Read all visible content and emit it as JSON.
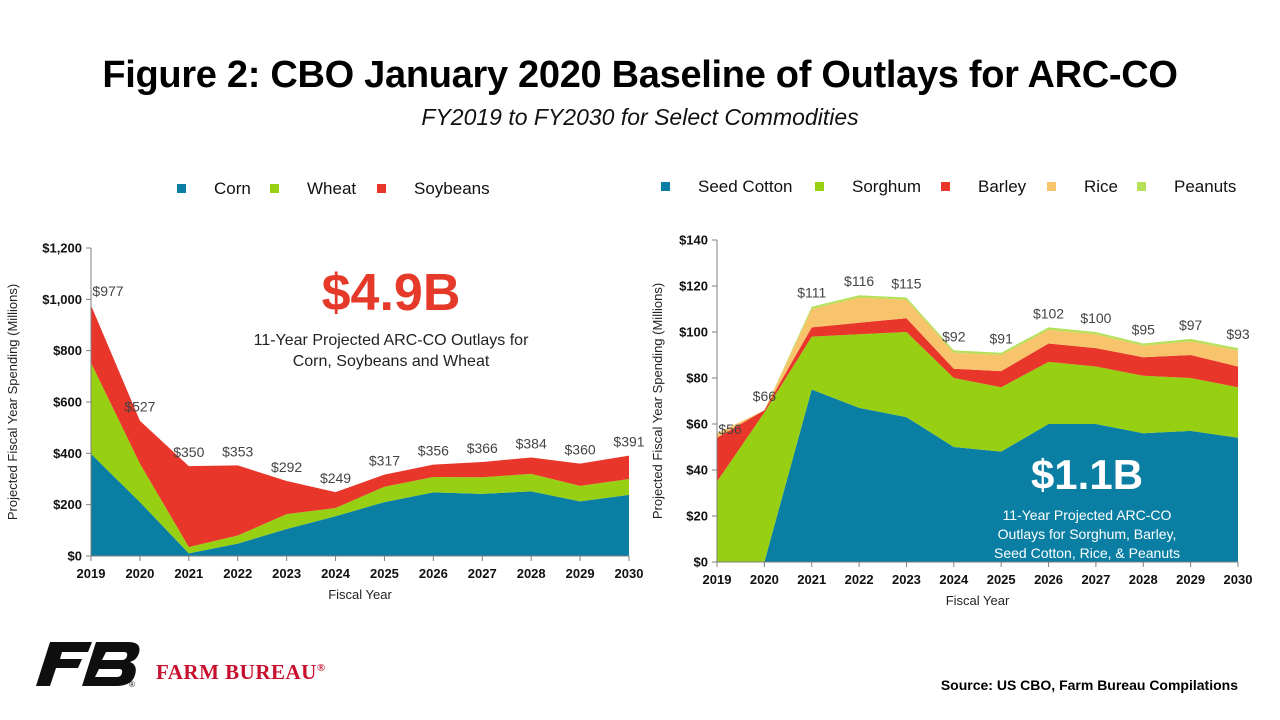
{
  "page": {
    "title": "Figure 2: CBO January 2020 Baseline of Outlays for ARC-CO",
    "subtitle": "FY2019 to FY2030 for Select Commodities",
    "source": "Source: US CBO, Farm Bureau Compilations",
    "org_name": "FARM BUREAU",
    "reg_mark": "®"
  },
  "colors": {
    "teal": "#0a7fa3",
    "green": "#97cf12",
    "red": "#e8372a",
    "orange": "#f7c46c",
    "light_green": "#b5e05a",
    "callout_red": "#e53a2a",
    "logo_black": "#0f0f0f",
    "brand_red": "#c8102e"
  },
  "chart_data": [
    {
      "type": "area",
      "stacked": true,
      "x": [
        "2019",
        "2020",
        "2021",
        "2022",
        "2023",
        "2024",
        "2025",
        "2026",
        "2027",
        "2028",
        "2029",
        "2030"
      ],
      "series": [
        {
          "name": "Corn",
          "color": "#0a7fa3",
          "values": [
            398,
            210,
            10,
            48,
            105,
            155,
            210,
            248,
            242,
            252,
            213,
            238
          ]
        },
        {
          "name": "Wheat",
          "color": "#97cf12",
          "values": [
            355,
            150,
            25,
            32,
            58,
            32,
            60,
            60,
            65,
            68,
            60,
            62
          ]
        },
        {
          "name": "Soybeans",
          "color": "#e8372a",
          "values": [
            224,
            167,
            315,
            273,
            129,
            62,
            47,
            48,
            59,
            64,
            87,
            91
          ]
        }
      ],
      "totals_labels": [
        "$977",
        "$527",
        "$350",
        "$353",
        "$292",
        "$249",
        "$317",
        "$356",
        "$366",
        "$384",
        "$360",
        "$391"
      ],
      "ylabel": "Projected Fiscal Year Spending (Millions)",
      "xlabel": "Fiscal Year",
      "ylim": [
        0,
        1200
      ],
      "yticks": [
        0,
        200,
        400,
        600,
        800,
        1000,
        1200
      ],
      "ytick_labels": [
        "$0",
        "$200",
        "$400",
        "$600",
        "$800",
        "$1,000",
        "$1,200"
      ],
      "legend_position": "top",
      "callout_value": "$4.9B",
      "callout_line1": "11-Year Projected ARC-CO Outlays for",
      "callout_line2": "Corn, Soybeans and Wheat"
    },
    {
      "type": "area",
      "stacked": true,
      "x": [
        "2019",
        "2020",
        "2021",
        "2022",
        "2023",
        "2024",
        "2025",
        "2026",
        "2027",
        "2028",
        "2029",
        "2030"
      ],
      "series": [
        {
          "name": "Seed Cotton",
          "color": "#0a7fa3",
          "values": [
            0,
            0,
            75,
            67,
            63,
            50,
            48,
            60,
            60,
            56,
            57,
            54
          ]
        },
        {
          "name": "Sorghum",
          "color": "#97cf12",
          "values": [
            35,
            65,
            23,
            32,
            37,
            30,
            28,
            27,
            25,
            25,
            23,
            22
          ]
        },
        {
          "name": "Barley",
          "color": "#e8372a",
          "values": [
            19,
            1,
            4,
            5,
            6,
            4,
            7,
            8,
            8,
            8,
            10,
            9
          ]
        },
        {
          "name": "Rice",
          "color": "#f7c46c",
          "values": [
            2,
            0,
            8,
            11,
            8,
            7,
            7,
            6,
            6,
            5,
            6,
            7
          ]
        },
        {
          "name": "Peanuts",
          "color": "#b5e05a",
          "values": [
            0,
            0,
            1,
            1,
            1,
            1,
            1,
            1,
            1,
            1,
            1,
            1
          ]
        }
      ],
      "totals_labels": [
        "$56",
        "$66",
        "$111",
        "$116",
        "$115",
        "$92",
        "$91",
        "$102",
        "$100",
        "$95",
        "$97",
        "$93"
      ],
      "ylabel": "Projected Fiscal Year Spending (Millions)",
      "xlabel": "Fiscal Year",
      "ylim": [
        0,
        140
      ],
      "yticks": [
        0,
        20,
        40,
        60,
        80,
        100,
        120,
        140
      ],
      "ytick_labels": [
        "$0",
        "$20",
        "$40",
        "$60",
        "$80",
        "$100",
        "$120",
        "$140"
      ],
      "legend_position": "top",
      "callout_value": "$1.1B",
      "callout_line1": "11-Year Projected ARC-CO",
      "callout_line2": "Outlays for Sorghum, Barley,",
      "callout_line3": "Seed Cotton, Rice, & Peanuts"
    }
  ]
}
